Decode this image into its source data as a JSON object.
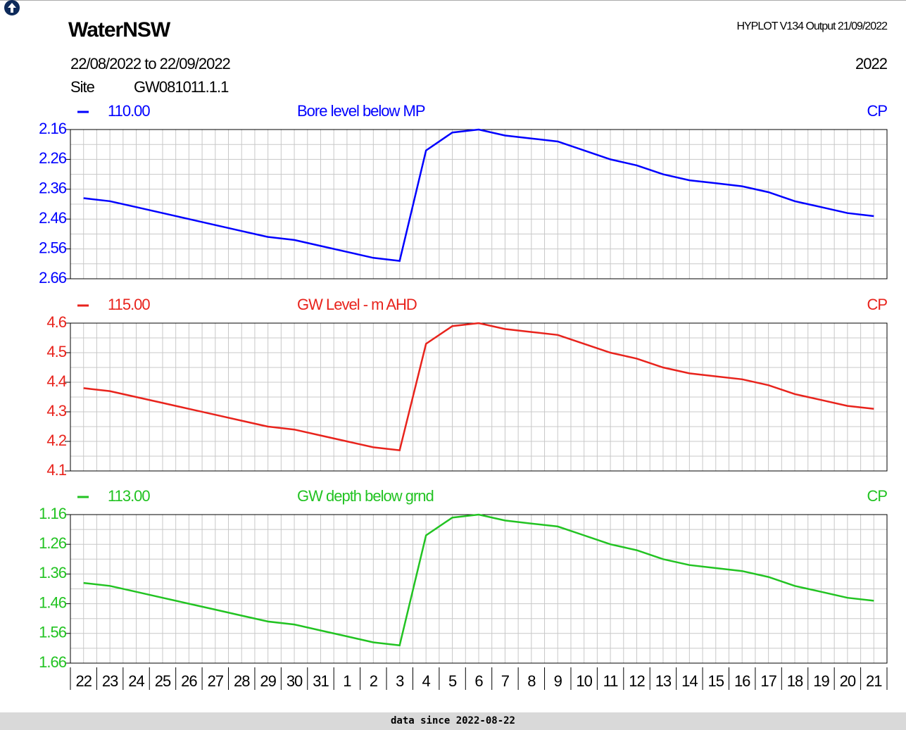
{
  "header": {
    "app_title": "WaterNSW",
    "program": "HYPLOT V134  Output 21/09/2022",
    "period": "22/08/2022  to  22/09/2022",
    "year": "2022",
    "site_label": "Site",
    "site": "GW081011.1.1"
  },
  "chart_data": [
    {
      "type": "line",
      "subtitle": "Bore level below MP",
      "annotation": "CP",
      "series": [
        {
          "name": "110.00",
          "color": "#0000ff",
          "values": [
            2.39,
            2.4,
            2.42,
            2.44,
            2.46,
            2.48,
            2.5,
            2.52,
            2.53,
            2.55,
            2.57,
            2.59,
            2.6,
            2.23,
            2.17,
            2.16,
            2.18,
            2.19,
            2.2,
            2.23,
            2.26,
            2.28,
            2.31,
            2.33,
            2.34,
            2.35,
            2.37,
            2.4,
            2.42,
            2.44,
            2.45
          ]
        }
      ],
      "ylim": [
        2.66,
        2.16
      ],
      "yticks": [
        2.16,
        2.26,
        2.36,
        2.46,
        2.56,
        2.66
      ],
      "grid": true
    },
    {
      "type": "line",
      "subtitle": "GW Level - m AHD",
      "annotation": "CP",
      "series": [
        {
          "name": "115.00",
          "color": "#e8231c",
          "values": [
            4.38,
            4.37,
            4.35,
            4.33,
            4.31,
            4.29,
            4.27,
            4.25,
            4.24,
            4.22,
            4.2,
            4.18,
            4.17,
            4.53,
            4.59,
            4.6,
            4.58,
            4.57,
            4.56,
            4.53,
            4.5,
            4.48,
            4.45,
            4.43,
            4.42,
            4.41,
            4.39,
            4.36,
            4.34,
            4.32,
            4.31
          ]
        }
      ],
      "ylim": [
        4.1,
        4.6
      ],
      "yticks": [
        4.6,
        4.5,
        4.4,
        4.3,
        4.2,
        4.1
      ],
      "grid": true
    },
    {
      "type": "line",
      "subtitle": "GW depth below grnd",
      "annotation": "CP",
      "series": [
        {
          "name": "113.00",
          "color": "#22c322",
          "values": [
            1.39,
            1.4,
            1.42,
            1.44,
            1.46,
            1.48,
            1.5,
            1.52,
            1.53,
            1.55,
            1.57,
            1.59,
            1.6,
            1.23,
            1.17,
            1.16,
            1.18,
            1.19,
            1.2,
            1.23,
            1.26,
            1.28,
            1.31,
            1.33,
            1.34,
            1.35,
            1.37,
            1.4,
            1.42,
            1.44,
            1.45
          ]
        }
      ],
      "ylim": [
        1.66,
        1.16
      ],
      "yticks": [
        1.16,
        1.26,
        1.36,
        1.46,
        1.56,
        1.66
      ],
      "grid": true,
      "categories": [
        "22",
        "23",
        "24",
        "25",
        "26",
        "27",
        "28",
        "29",
        "30",
        "31",
        "1",
        "2",
        "3",
        "4",
        "5",
        "6",
        "7",
        "8",
        "9",
        "10",
        "11",
        "12",
        "13",
        "14",
        "15",
        "16",
        "17",
        "18",
        "19",
        "20",
        "21"
      ]
    }
  ],
  "footer": "data since 2022-08-22"
}
